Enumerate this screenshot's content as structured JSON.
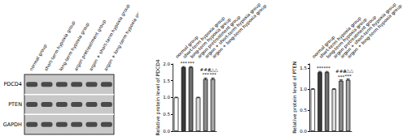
{
  "blot": {
    "lanes": [
      "normal group",
      "short-term hypoxia group",
      "long-term hypoxia group",
      "argon pretreatment group",
      "argon + short-term hypoxia group",
      "argon + long-term hypoxia group"
    ],
    "rows": [
      "PDCD4",
      "PTEN",
      "GAPDH"
    ]
  },
  "chart_data": [
    {
      "type": "bar",
      "ylabel": "Relative protein level of PDCD4",
      "categories": [
        "normal group",
        "short-term hypoxia group",
        "long-term hypoxia group",
        "argon pretreatment group",
        "argon + short-term hypoxia group",
        "argon + long-term hypoxia group"
      ],
      "values": [
        1.0,
        1.9,
        1.9,
        1.0,
        1.55,
        1.55
      ],
      "errors": [
        0.01,
        0.02,
        0.02,
        0.01,
        0.03,
        0.03
      ],
      "annotations": [
        null,
        [
          "***"
        ],
        [
          "***"
        ],
        null,
        [
          "###",
          "***"
        ],
        [
          "△△△",
          "***"
        ]
      ],
      "colors": [
        "#ffffff",
        "#3a3a3a",
        "#6e6e6e",
        "#d9d9d9",
        "#8c8c8c",
        "#a6a6a6"
      ],
      "ylim": [
        0,
        2.0
      ],
      "yticks": [
        {
          "value": 0,
          "label": "0.0"
        },
        {
          "value": 0.5,
          "label": "0.5"
        },
        {
          "value": 1.0,
          "label": "1.0"
        },
        {
          "value": 1.5,
          "label": "1.5"
        },
        {
          "value": 2.0,
          "label": "2.0"
        }
      ]
    },
    {
      "type": "bar",
      "ylabel": "Relative protein level of PTEN",
      "categories": [
        "normal group",
        "short-term hypoxia group",
        "long-term hypoxia group",
        "argon pretreatment group",
        "argon + short-term hypoxia group",
        "argon + long-term hypoxia group"
      ],
      "values": [
        1.0,
        1.4,
        1.4,
        1.0,
        1.2,
        1.22
      ],
      "errors": [
        0.01,
        0.02,
        0.02,
        0.01,
        0.02,
        0.02
      ],
      "annotations": [
        null,
        [
          "***"
        ],
        [
          "***"
        ],
        null,
        [
          "###",
          "***"
        ],
        [
          "△△△",
          "***"
        ]
      ],
      "colors": [
        "#ffffff",
        "#3a3a3a",
        "#6e6e6e",
        "#d9d9d9",
        "#8c8c8c",
        "#a6a6a6"
      ],
      "ylim": [
        0,
        1.6
      ],
      "yticks": [
        {
          "value": 0,
          "label": "0.0"
        },
        {
          "value": 0.5,
          "label": "0.5"
        },
        {
          "value": 1.0,
          "label": "1.0"
        },
        {
          "value": 1.5,
          "label": "1.5"
        }
      ]
    }
  ]
}
